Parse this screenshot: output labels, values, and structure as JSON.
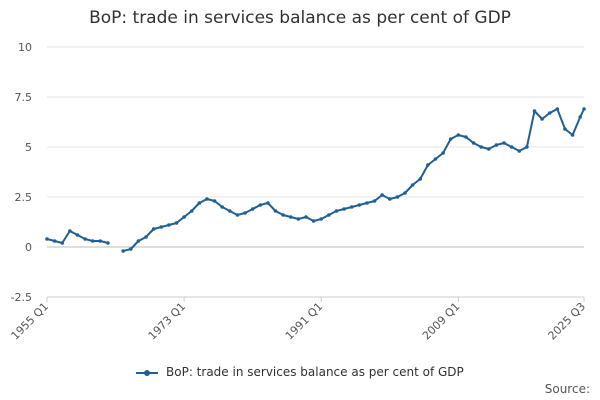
{
  "chart_data": {
    "type": "line",
    "title": "BoP: trade in services balance as per cent of GDP",
    "xlabel": "",
    "ylabel": "",
    "ylim": [
      -2.5,
      10
    ],
    "yticks": [
      "10",
      "7.5",
      "5",
      "2.5",
      "0",
      "-2.5"
    ],
    "ytick_values": [
      10,
      7.5,
      5,
      2.5,
      0,
      -2.5
    ],
    "xticks": [
      "1955 Q1",
      "1973 Q1",
      "1991 Q1",
      "2009 Q1",
      "2025 Q3"
    ],
    "xtick_values": [
      1955.0,
      1973.0,
      1991.0,
      2009.0,
      2025.5
    ],
    "xlim": [
      1955.0,
      2025.5
    ],
    "grid": true,
    "legend_position": "bottom",
    "series": [
      {
        "name": "BoP: trade in services balance as per cent of GDP",
        "color": "#206095",
        "x": [
          1955.0,
          1956.0,
          1957.0,
          1958.0,
          1959.0,
          1960.0,
          1961.0,
          1962.0,
          1963.0,
          1964.0,
          1965.0,
          1966.0,
          1967.0,
          1968.0,
          1969.0,
          1970.0,
          1971.0,
          1972.0,
          1973.0,
          1974.0,
          1975.0,
          1976.0,
          1977.0,
          1978.0,
          1979.0,
          1980.0,
          1981.0,
          1982.0,
          1983.0,
          1984.0,
          1985.0,
          1986.0,
          1987.0,
          1988.0,
          1989.0,
          1990.0,
          1991.0,
          1992.0,
          1993.0,
          1994.0,
          1995.0,
          1996.0,
          1997.0,
          1998.0,
          1999.0,
          2000.0,
          2001.0,
          2002.0,
          2003.0,
          2004.0,
          2005.0,
          2006.0,
          2007.0,
          2008.0,
          2009.0,
          2010.0,
          2011.0,
          2012.0,
          2013.0,
          2014.0,
          2015.0,
          2016.0,
          2017.0,
          2018.0,
          2019.0,
          2020.0,
          2021.0,
          2022.0,
          2023.0,
          2024.0,
          2025.0,
          2025.5
        ],
        "values": [
          0.4,
          0.3,
          0.2,
          0.8,
          0.6,
          0.4,
          0.3,
          0.3,
          0.2,
          null,
          -0.2,
          -0.1,
          0.3,
          0.5,
          0.9,
          1.0,
          1.1,
          1.2,
          1.5,
          1.8,
          2.2,
          2.4,
          2.3,
          2.0,
          1.8,
          1.6,
          1.7,
          1.9,
          2.1,
          2.2,
          1.8,
          1.6,
          1.5,
          1.4,
          1.5,
          1.3,
          1.4,
          1.6,
          1.8,
          1.9,
          2.0,
          2.1,
          2.2,
          2.3,
          2.6,
          2.4,
          2.5,
          2.7,
          3.1,
          3.4,
          4.1,
          4.4,
          4.7,
          5.4,
          5.6,
          5.5,
          5.2,
          5.0,
          4.9,
          5.1,
          5.2,
          5.0,
          4.8,
          5.0,
          6.8,
          6.4,
          6.7,
          6.9,
          5.9,
          5.6,
          6.5,
          6.9
        ]
      }
    ],
    "legend_label": "BoP: trade in services balance as per cent of GDP",
    "source_label": "Source:"
  }
}
